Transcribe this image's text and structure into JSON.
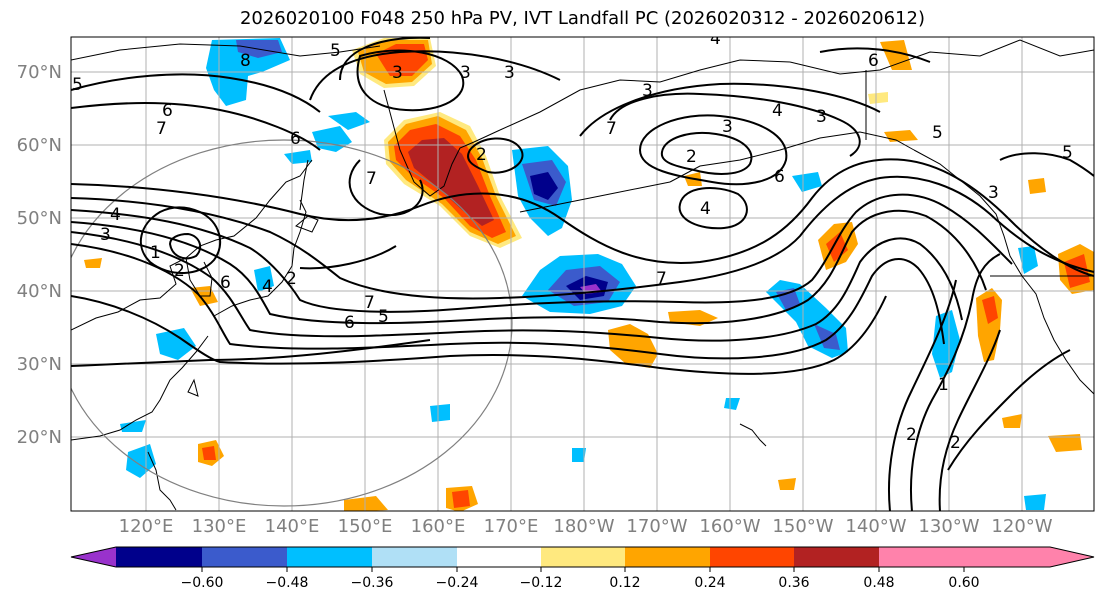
{
  "title": "2026020100 F048 250 hPa PV, IVT Landfall PC (2026020312 - 2026020612)",
  "map": {
    "lat_labels": [
      "70°N",
      "60°N",
      "50°N",
      "40°N",
      "30°N",
      "20°N"
    ],
    "lon_labels": [
      "120°E",
      "130°E",
      "140°E",
      "150°E",
      "160°E",
      "170°E",
      "180°W",
      "170°W",
      "160°W",
      "150°W",
      "140°W",
      "130°W",
      "120°W"
    ],
    "contour_labels": [
      "8",
      "3",
      "3",
      "3",
      "6",
      "7",
      "6",
      "5",
      "4",
      "3",
      "7",
      "2",
      "4",
      "3",
      "2",
      "1",
      "4",
      "7",
      "5",
      "6",
      "3",
      "2",
      "2",
      "7",
      "6",
      "5",
      "6",
      "4",
      "3",
      "5",
      "3",
      "5",
      "7",
      "6",
      "4",
      "2",
      "1",
      "2"
    ]
  },
  "colorbar": {
    "tick_labels": [
      "−0.60",
      "−0.48",
      "−0.36",
      "−0.24",
      "−0.12",
      "0.12",
      "0.24",
      "0.36",
      "0.48",
      "0.60"
    ],
    "colors": [
      "#9932cc",
      "#00008b",
      "#3b5bcc",
      "#00bfff",
      "#b0e0f6",
      "#ffffff",
      "#ffe97f",
      "#ffa500",
      "#ff4500",
      "#b22222",
      "#ff82ab"
    ]
  },
  "colors": {
    "coast": "#000000",
    "grid": "#b0b0b0",
    "circle": "#808080",
    "axis_label": "#808080"
  }
}
